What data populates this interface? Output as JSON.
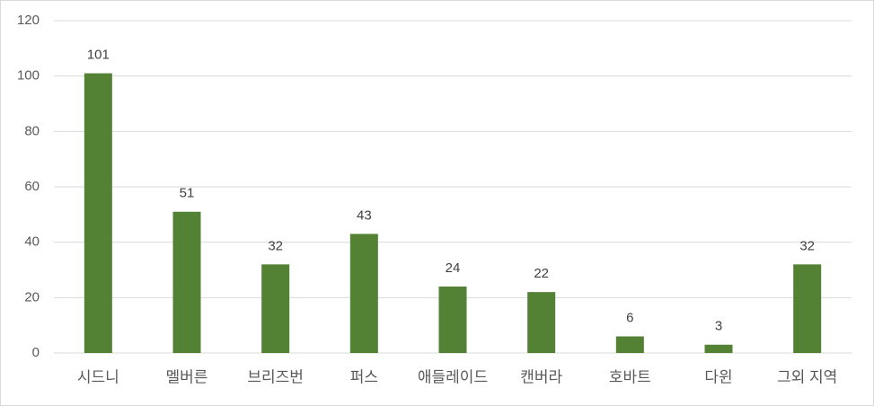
{
  "chart_data": {
    "type": "bar",
    "categories": [
      "시드니",
      "멜버른",
      "브리즈번",
      "퍼스",
      "애들레이드",
      "캔버라",
      "호바트",
      "다윈",
      "그외 지역"
    ],
    "values": [
      101,
      51,
      32,
      43,
      24,
      22,
      6,
      3,
      32
    ],
    "color": "#548235",
    "ylim": [
      0,
      120
    ],
    "yticks": [
      0,
      20,
      40,
      60,
      80,
      100,
      120
    ],
    "grid": true
  }
}
